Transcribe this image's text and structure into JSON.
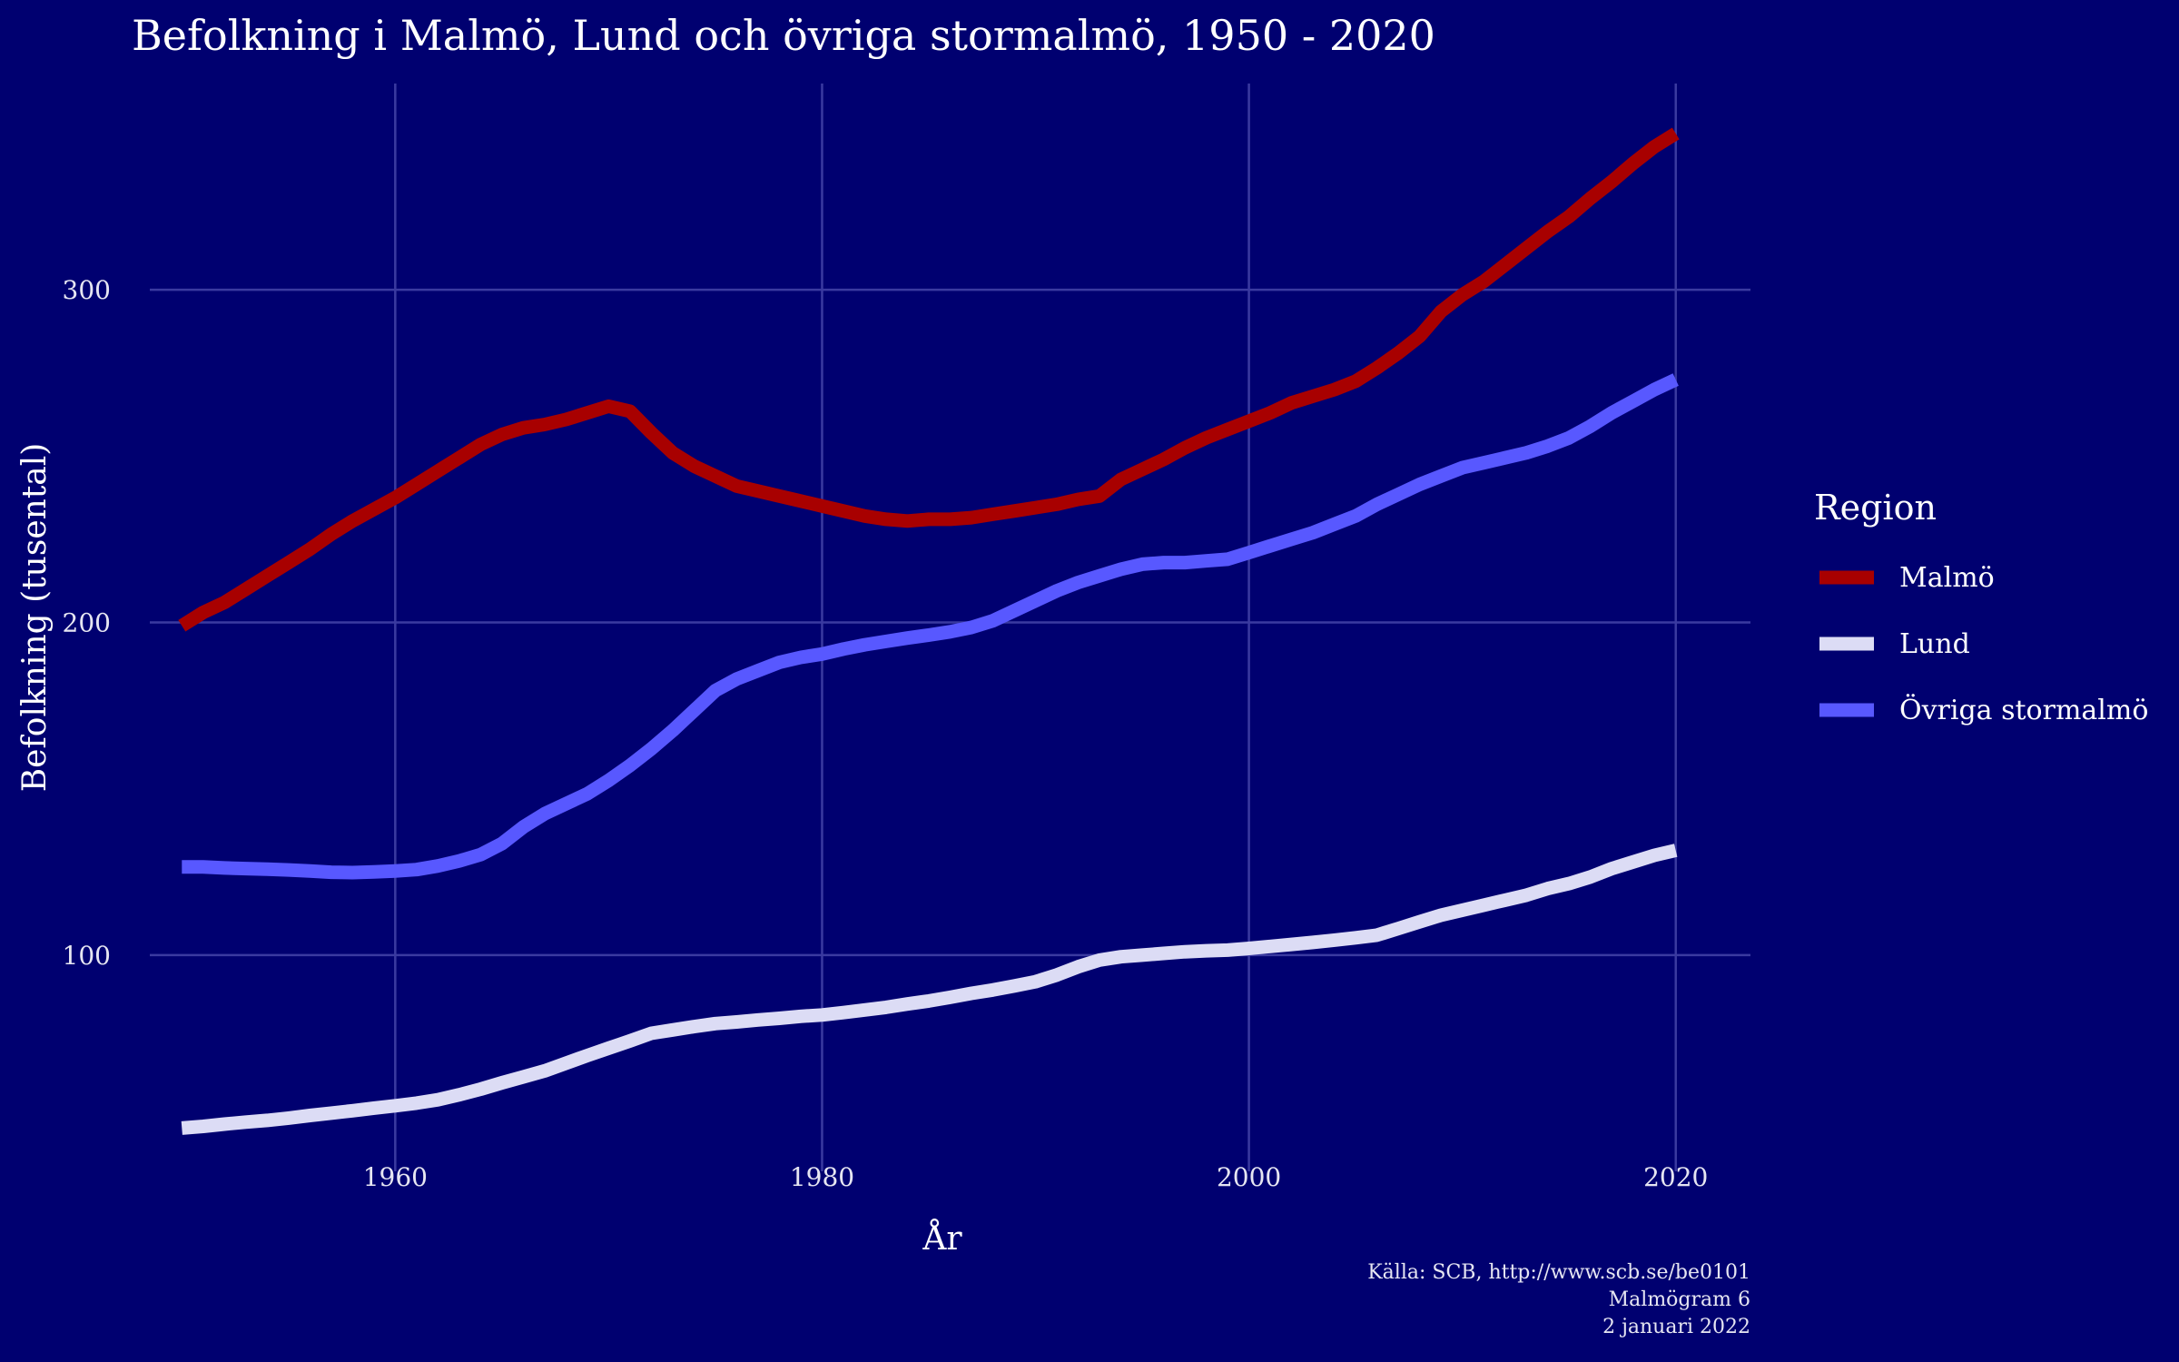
{
  "chart_data": {
    "type": "line",
    "title": "Befolkning i Malmö, Lund och övriga stormalmö, 1950 - 2020",
    "xlabel": "År",
    "ylabel": "Befolkning (tusental)",
    "xlim": [
      1948.5,
      2023.5
    ],
    "ylim": [
      35,
      362
    ],
    "x_ticks": [
      1960,
      1980,
      2000,
      2020
    ],
    "y_ticks": [
      100,
      200,
      300
    ],
    "grid": true,
    "legend": {
      "title": "Region",
      "placement": "right"
    },
    "x": [
      1950,
      1951,
      1952,
      1953,
      1954,
      1955,
      1956,
      1957,
      1958,
      1959,
      1960,
      1961,
      1962,
      1963,
      1964,
      1965,
      1966,
      1967,
      1968,
      1969,
      1970,
      1971,
      1972,
      1973,
      1974,
      1975,
      1976,
      1977,
      1978,
      1979,
      1980,
      1981,
      1982,
      1983,
      1984,
      1985,
      1986,
      1987,
      1988,
      1989,
      1990,
      1991,
      1992,
      1993,
      1994,
      1995,
      1996,
      1997,
      1998,
      1999,
      2000,
      2001,
      2002,
      2003,
      2004,
      2005,
      2006,
      2007,
      2008,
      2009,
      2010,
      2011,
      2012,
      2013,
      2014,
      2015,
      2016,
      2017,
      2018,
      2019,
      2020
    ],
    "series": [
      {
        "name": "Malmö",
        "color": "#a80000",
        "values": [
          199,
          203,
          206,
          210,
          214,
          218,
          222,
          226.5,
          230.5,
          234,
          237.5,
          241.5,
          245.5,
          249.5,
          253.5,
          256.5,
          258.5,
          259.5,
          261,
          263,
          265,
          263.5,
          257,
          251,
          247,
          244,
          241,
          239.5,
          238,
          236.5,
          235,
          233.5,
          232,
          231,
          230.5,
          231,
          231,
          231.5,
          232.5,
          233.5,
          234.5,
          235.5,
          237,
          238,
          243,
          246,
          249,
          252.5,
          255.5,
          258,
          260.5,
          263,
          266,
          268,
          270,
          272.5,
          276.5,
          281,
          286,
          293.5,
          298.5,
          302.5,
          307.5,
          312.5,
          317.5,
          322,
          327.5,
          332.5,
          338,
          343,
          347
        ]
      },
      {
        "name": "Lund",
        "color": "#dcdcf5",
        "values": [
          48,
          48.5,
          49.2,
          49.8,
          50.3,
          51,
          51.8,
          52.5,
          53.2,
          54,
          54.7,
          55.5,
          56.5,
          58,
          59.7,
          61.6,
          63.4,
          65.2,
          67.5,
          69.8,
          72,
          74.2,
          76.5,
          77.5,
          78.5,
          79.4,
          79.9,
          80.5,
          81,
          81.6,
          82,
          82.7,
          83.5,
          84.3,
          85.3,
          86.2,
          87.3,
          88.5,
          89.5,
          90.7,
          92,
          94,
          96.5,
          98.5,
          99.5,
          100,
          100.5,
          101,
          101.3,
          101.5,
          102,
          102.6,
          103.2,
          103.8,
          104.5,
          105.2,
          106,
          108,
          110,
          112,
          113.5,
          115,
          116.5,
          118,
          120,
          121.5,
          123.5,
          126,
          128,
          130,
          131.5
        ]
      },
      {
        "name": "Övriga stormalmö",
        "color": "#5858ff",
        "values": [
          126.5,
          126.5,
          126.2,
          126,
          125.8,
          125.6,
          125.3,
          124.9,
          124.8,
          125,
          125.3,
          125.7,
          126.8,
          128.3,
          130.2,
          133.5,
          138.5,
          142.5,
          145.5,
          148.5,
          152.5,
          157,
          162,
          167.5,
          173.5,
          179.5,
          183,
          185.5,
          188,
          189.5,
          190.5,
          192,
          193.3,
          194.3,
          195.3,
          196.2,
          197.2,
          198.5,
          200.5,
          203.5,
          206.5,
          209.5,
          212,
          214,
          216,
          217.5,
          218,
          218,
          218.5,
          219,
          221,
          223,
          225,
          227,
          229.5,
          232,
          235.5,
          238.5,
          241.5,
          244,
          246.5,
          248,
          249.5,
          251,
          253,
          255.5,
          259,
          263,
          266.5,
          270,
          273
        ]
      }
    ]
  },
  "caption": {
    "source": "Källa: SCB, http://www.scb.se/be0101",
    "series_name": "Malmögram 6",
    "date": "2 januari 2022"
  }
}
